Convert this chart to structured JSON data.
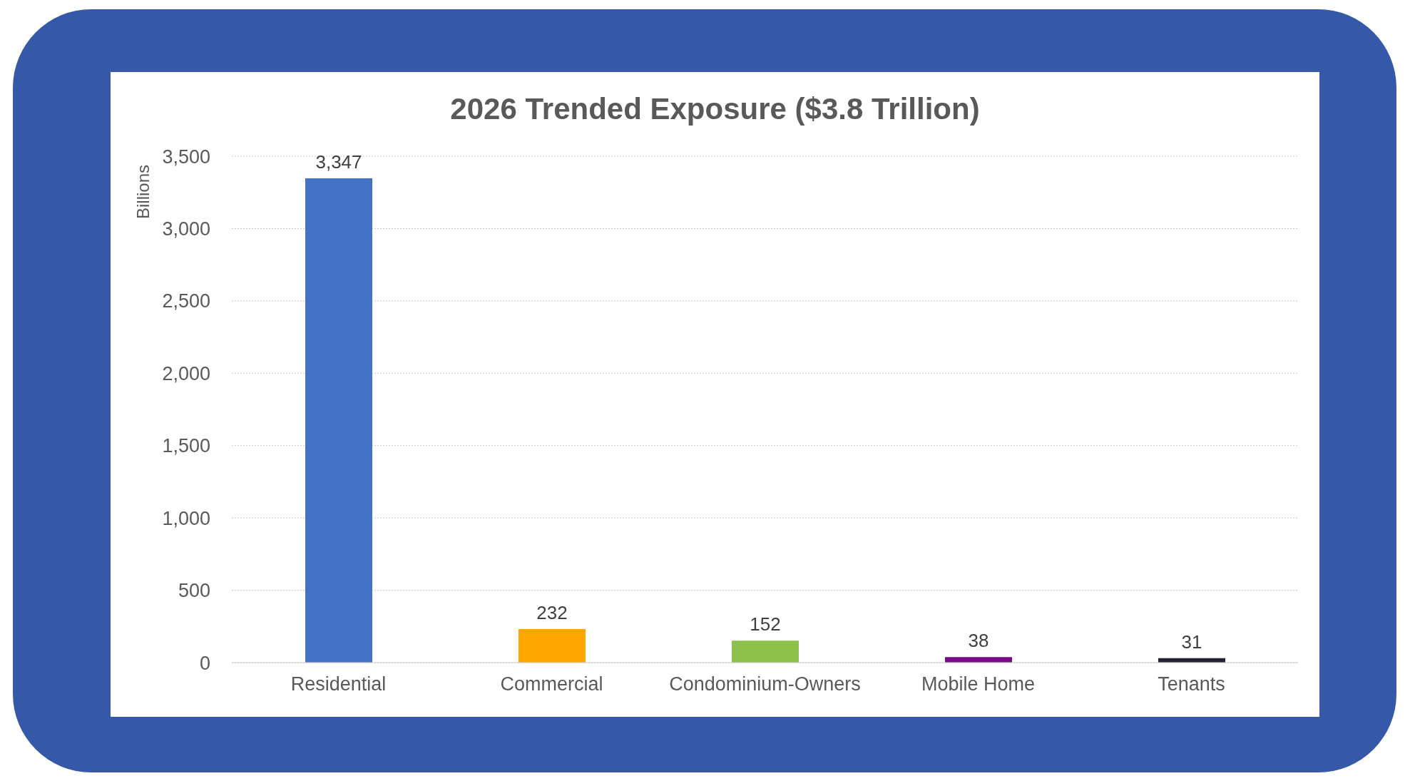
{
  "chart_data": {
    "type": "bar",
    "title": "2026 Trended Exposure ($3.8 Trillion)",
    "ylabel": "Billions",
    "categories": [
      "Residential",
      "Commercial",
      "Condominium-Owners",
      "Mobile Home",
      "Tenants"
    ],
    "values": [
      3347,
      232,
      152,
      38,
      31
    ],
    "colors": [
      "#4472c4",
      "#ffa500",
      "#8cc04b",
      "#7b0a8a",
      "#222233"
    ],
    "value_labels": [
      "3,347",
      "232",
      "152",
      "38",
      "31"
    ],
    "ylim": [
      0,
      3500
    ],
    "yticks": [
      0,
      500,
      {
        "value": 1000,
        "label": "1,000"
      },
      {
        "value": 1500,
        "label": "1,500"
      },
      {
        "value": 2000,
        "label": "2,000"
      },
      {
        "value": 2500,
        "label": "2,500"
      },
      {
        "value": 3000,
        "label": "3,000"
      },
      {
        "value": 3500,
        "label": "3,500"
      }
    ],
    "grid": "y",
    "legend": false
  }
}
